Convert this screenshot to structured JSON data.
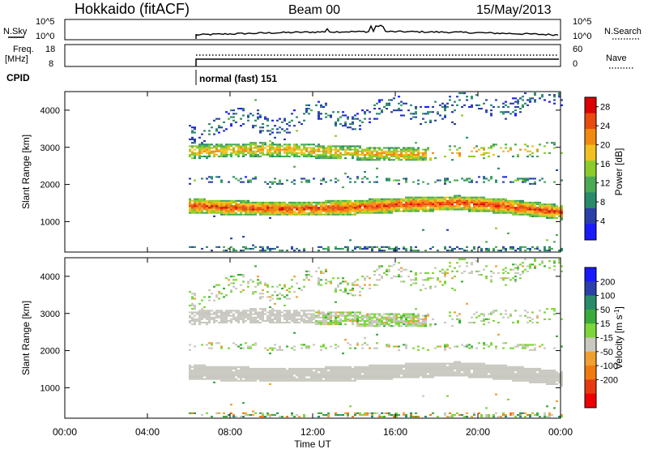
{
  "header": {
    "station": "Hokkaido (fitACF)",
    "beam": "Beam 00",
    "date": "15/May/2013"
  },
  "sky_panel": {
    "left_label": "N.Sky",
    "right_label": "N.Search",
    "left_ticks": [
      "10^5",
      "10^0"
    ],
    "right_ticks": [
      "10^5",
      "10^0"
    ]
  },
  "freq_panel": {
    "left_label_1": "Freq.",
    "left_label_2": "[MHz]",
    "right_label": "Nave",
    "left_ticks": [
      "18",
      "8"
    ],
    "right_ticks": [
      "60",
      "0"
    ]
  },
  "cpid": {
    "label": "CPID",
    "value": "normal (fast) 151"
  },
  "colors": {
    "power_scale": [
      "#1a1aff",
      "#2a3fa8",
      "#2a8a6a",
      "#4caa55",
      "#8ccc2a",
      "#f0c020",
      "#f08a10",
      "#e84a10",
      "#dd0000"
    ],
    "velocity_scale": [
      "#1a1aff",
      "#2a3fa8",
      "#2a8a6a",
      "#3aaa3a",
      "#7dd63a",
      "#c8c8c0",
      "#f0a030",
      "#f07a10",
      "#e83a10",
      "#ee0000"
    ],
    "ground_scatter": "#c8c8c0"
  },
  "chart_data": [
    {
      "type": "heatmap",
      "title": "",
      "xlabel": "Time UT",
      "ylabel": "Slant Range [km]",
      "xlim": [
        "00:00",
        "24:00"
      ],
      "ylim": [
        180,
        4500
      ],
      "x_ticks": [
        "00:00",
        "04:00",
        "08:00",
        "12:00",
        "16:00",
        "20:00",
        "00:00"
      ],
      "y_ticks": [
        "1000",
        "2000",
        "3000",
        "4000"
      ],
      "data_start_hour": 6.0,
      "colorbar": {
        "label": "Power [dB]",
        "ticks": [
          "4",
          "8",
          "12",
          "16",
          "20",
          "24",
          "28"
        ],
        "range": [
          0,
          30
        ]
      },
      "bands": [
        {
          "name": "band-1",
          "range_km": [
            1100,
            1650
          ],
          "peak_db": 28
        },
        {
          "name": "band-2",
          "range_km": [
            2600,
            3100
          ],
          "peak_db": 22
        },
        {
          "name": "band-3",
          "range_km": [
            1950,
            2200
          ],
          "peak_db": 10
        },
        {
          "name": "band-4",
          "range_km": [
            3400,
            4300
          ],
          "peak_db": 8
        }
      ]
    },
    {
      "type": "heatmap",
      "title": "",
      "xlabel": "Time UT",
      "ylabel": "Slant Range [km]",
      "xlim": [
        "00:00",
        "24:00"
      ],
      "ylim": [
        180,
        4500
      ],
      "x_ticks": [
        "00:00",
        "04:00",
        "08:00",
        "12:00",
        "16:00",
        "20:00",
        "00:00"
      ],
      "y_ticks": [
        "1000",
        "2000",
        "3000",
        "4000"
      ],
      "data_start_hour": 6.0,
      "colorbar": {
        "label": "Velocity [m s^-1]",
        "ticks": [
          "200",
          "100",
          "50",
          "15",
          "-15",
          "-50",
          "-100",
          "-200"
        ],
        "range": [
          -250,
          250
        ]
      }
    }
  ],
  "footer": {
    "xlabel": "Time UT"
  }
}
